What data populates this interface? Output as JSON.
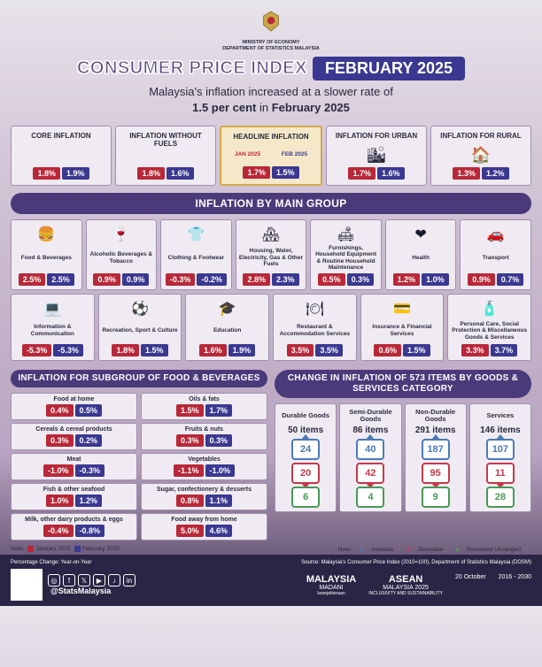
{
  "colors": {
    "jan": "#b82838",
    "feb": "#3a3890",
    "headline_bg": "#f5e8c8",
    "headline_border": "#d4a84a",
    "header_bg": "#4a3a7a",
    "inc": "#4a7ab8",
    "dec": "#c83848",
    "same": "#4a9858"
  },
  "ministry": {
    "line1": "MINISTRY OF ECONOMY",
    "line2": "DEPARTMENT OF STATISTICS MALAYSIA"
  },
  "title": {
    "main": "CONSUMER PRICE INDEX",
    "month": "FEBRUARY 2025"
  },
  "subtitle": {
    "pre": "Malaysia's inflation increased at a slower rate of",
    "pct": "1.5 per cent",
    "mid": " in ",
    "when": "February 2025"
  },
  "top": [
    {
      "label": "CORE INFLATION",
      "jan": "1.8%",
      "feb": "1.9%",
      "headline": false,
      "icon": ""
    },
    {
      "label": "INFLATION WITHOUT FUELS",
      "jan": "1.8%",
      "feb": "1.6%",
      "headline": false,
      "icon": ""
    },
    {
      "label": "HEADLINE INFLATION",
      "jan": "1.7%",
      "feb": "1.5%",
      "headline": true,
      "icon": "",
      "m1": "JAN 2025",
      "m2": "FEB 2025"
    },
    {
      "label": "INFLATION FOR URBAN",
      "jan": "1.7%",
      "feb": "1.6%",
      "headline": false,
      "icon": "🏙"
    },
    {
      "label": "INFLATION FOR RURAL",
      "jan": "1.3%",
      "feb": "1.2%",
      "headline": false,
      "icon": "🏠"
    }
  ],
  "sec1_hdr": "INFLATION BY MAIN GROUP",
  "groups": [
    {
      "label": "Food & Beverages",
      "icon": "🍔",
      "jan": "2.5%",
      "feb": "2.5%"
    },
    {
      "label": "Alcoholic Beverages & Tobacco",
      "icon": "🍷",
      "jan": "0.9%",
      "feb": "0.9%"
    },
    {
      "label": "Clothing & Footwear",
      "icon": "👕",
      "jan": "-0.3%",
      "feb": "-0.2%"
    },
    {
      "label": "Housing, Water, Electricity, Gas & Other Fuels",
      "icon": "🏘",
      "jan": "2.8%",
      "feb": "2.3%"
    },
    {
      "label": "Furnishings, Household Equipment & Routine Household Maintenance",
      "icon": "🛋",
      "jan": "0.5%",
      "feb": "0.3%"
    },
    {
      "label": "Health",
      "icon": "❤",
      "jan": "1.2%",
      "feb": "1.0%"
    },
    {
      "label": "Transport",
      "icon": "🚗",
      "jan": "0.9%",
      "feb": "0.7%"
    },
    {
      "label": "Information & Communication",
      "icon": "💻",
      "jan": "-5.3%",
      "feb": "-5.3%"
    },
    {
      "label": "Recreation, Sport & Culture",
      "icon": "⚽",
      "jan": "1.8%",
      "feb": "1.5%"
    },
    {
      "label": "Education",
      "icon": "🎓",
      "jan": "1.6%",
      "feb": "1.9%"
    },
    {
      "label": "Restaurant & Accommodation Services",
      "icon": "🍽",
      "jan": "3.5%",
      "feb": "3.5%"
    },
    {
      "label": "Insurance & Financial Services",
      "icon": "💳",
      "jan": "0.6%",
      "feb": "1.5%"
    },
    {
      "label": "Personal Care, Social Protection & Miscellaneous Goods & Services",
      "icon": "🧴",
      "jan": "3.3%",
      "feb": "3.7%"
    }
  ],
  "sec2_hdr": "INFLATION FOR SUBGROUP OF FOOD & BEVERAGES",
  "subgroups": {
    "col1": [
      {
        "label": "Food at home",
        "jan": "0.4%",
        "feb": "0.5%"
      },
      {
        "label": "Cereals & cereal products",
        "jan": "0.3%",
        "feb": "0.2%"
      },
      {
        "label": "Meat",
        "jan": "-1.0%",
        "feb": "-0.3%"
      },
      {
        "label": "Fish & other seafood",
        "jan": "1.0%",
        "feb": "1.2%"
      },
      {
        "label": "Milk, other dairy products & eggs",
        "jan": "-0.4%",
        "feb": "-0.8%"
      }
    ],
    "col2": [
      {
        "label": "Oils & fats",
        "jan": "1.5%",
        "feb": "1.7%"
      },
      {
        "label": "Fruits & nuts",
        "jan": "0.3%",
        "feb": "0.3%"
      },
      {
        "label": "Vegetables",
        "jan": "-1.1%",
        "feb": "-1.0%"
      },
      {
        "label": "Sugar, confectionery & desserts",
        "jan": "0.8%",
        "feb": "1.1%"
      },
      {
        "label": "Food away from home",
        "jan": "5.0%",
        "feb": "4.6%"
      }
    ]
  },
  "sec3_hdr": "CHANGE IN INFLATION OF 573 ITEMS BY GOODS & SERVICES CATEGORY",
  "items": [
    {
      "label": "Durable Goods",
      "count": "50 items",
      "inc": "24",
      "dec": "20",
      "same": "6"
    },
    {
      "label": "Semi-Durable Goods",
      "count": "86 items",
      "inc": "40",
      "dec": "42",
      "same": "4"
    },
    {
      "label": "Non-Durable Goods",
      "count": "291 items",
      "inc": "187",
      "dec": "95",
      "same": "9"
    },
    {
      "label": "Services",
      "count": "146 items",
      "inc": "107",
      "dec": "11",
      "same": "28"
    }
  ],
  "notes": {
    "left_pre": "Note:",
    "jan": "January 2025",
    "feb": "February 2025",
    "right_pre": "Note:",
    "inc": "Increase",
    "dec": "Decrease",
    "same": "Remained Uncanged"
  },
  "footer": {
    "pct_note": "Percentage Change: Year-on-Year",
    "source": "Source: Malaysia's Consumer Price Index (2010=100), Department of Statistics Malaysia (DOSM)",
    "handle": "@StatsMalaysia",
    "logos": [
      {
        "big": "MALAYSIA",
        "small": "MADANI",
        "tag": "kesejahteraan"
      },
      {
        "big": "ASEAN",
        "small": "MALAYSIA 2025",
        "tag": "INCLUSIVITY AND SUSTAINABILITY"
      },
      {
        "big": "",
        "small": "20 October",
        "tag": ""
      },
      {
        "big": "",
        "small": "2016 - 2030",
        "tag": ""
      }
    ]
  }
}
